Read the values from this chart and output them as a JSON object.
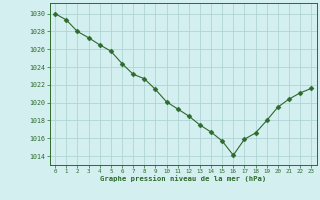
{
  "x": [
    0,
    1,
    2,
    3,
    4,
    5,
    6,
    7,
    8,
    9,
    10,
    11,
    12,
    13,
    14,
    15,
    16,
    17,
    18,
    19,
    20,
    21,
    22,
    23
  ],
  "y": [
    1030.0,
    1029.3,
    1028.0,
    1027.3,
    1026.5,
    1025.8,
    1024.4,
    1023.2,
    1022.7,
    1021.5,
    1020.1,
    1019.3,
    1018.5,
    1017.5,
    1016.7,
    1015.7,
    1014.1,
    1015.9,
    1016.6,
    1018.0,
    1019.5,
    1020.4,
    1021.1,
    1021.6
  ],
  "line_color": "#2d6a2d",
  "marker": "D",
  "marker_size": 2.5,
  "bg_color": "#d4efef",
  "grid_color": "#b0d4d4",
  "xlabel": "Graphe pression niveau de la mer (hPa)",
  "xlabel_color": "#2d6a2d",
  "tick_color": "#2d6a2d",
  "ylabel_ticks": [
    1014,
    1016,
    1018,
    1020,
    1022,
    1024,
    1026,
    1028,
    1030
  ],
  "ylim": [
    1013.0,
    1031.2
  ],
  "xlim": [
    -0.5,
    23.5
  ]
}
